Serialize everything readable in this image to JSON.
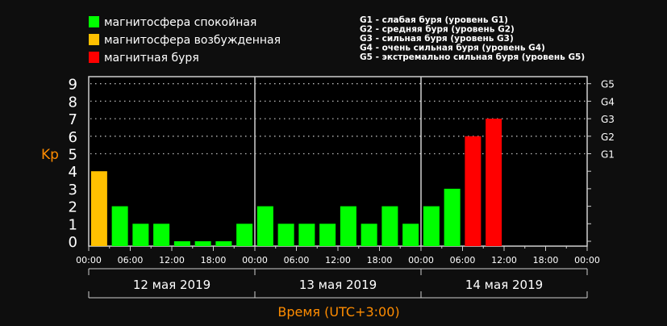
{
  "chart_data": {
    "type": "bar",
    "ylabel": "Kp",
    "xlabel": "Время (UTC+3:00)",
    "ylim": [
      0,
      9
    ],
    "yticks": [
      "0",
      "1",
      "2",
      "3",
      "4",
      "5",
      "6",
      "7",
      "8",
      "9"
    ],
    "right_ticks": [
      {
        "label": "G1",
        "kp": 5
      },
      {
        "label": "G2",
        "kp": 6
      },
      {
        "label": "G3",
        "kp": 7
      },
      {
        "label": "G4",
        "kp": 8
      },
      {
        "label": "G5",
        "kp": 9
      }
    ],
    "xticks": [
      "00:00",
      "06:00",
      "12:00",
      "18:00",
      "00:00",
      "06:00",
      "12:00",
      "18:00",
      "00:00",
      "06:00",
      "12:00",
      "18:00",
      "00:00"
    ],
    "days": [
      "12 мая 2019",
      "13 мая 2019",
      "14 мая 2019"
    ],
    "interval_hours": 3,
    "values": [
      4,
      2,
      1,
      1,
      0,
      0,
      0,
      1,
      2,
      1,
      1,
      1,
      2,
      1,
      2,
      1,
      2,
      3,
      6,
      7
    ],
    "grid": "dotted horizontal at Kp 5-9",
    "legend": [
      {
        "label": "магнитосфера спокойная",
        "color": "#00ff00"
      },
      {
        "label": "магнитосфера возбужденная",
        "color": "#ffc000"
      },
      {
        "label": "магнитная буря",
        "color": "#ff0000"
      }
    ],
    "storm_legend": [
      "G1 - слабая буря (уровень G1)",
      "G2 - средняя буря (уровень G2)",
      "G3 - сильная буря (уровень G3)",
      "G4 - очень сильная буря (уровень G4)",
      "G5 - экстремально сильная буря (уровень G5)"
    ],
    "colors": {
      "quiet": "#00ff00",
      "active": "#ffc000",
      "storm": "#ff0000",
      "axis_label": "#ff8c00"
    }
  }
}
